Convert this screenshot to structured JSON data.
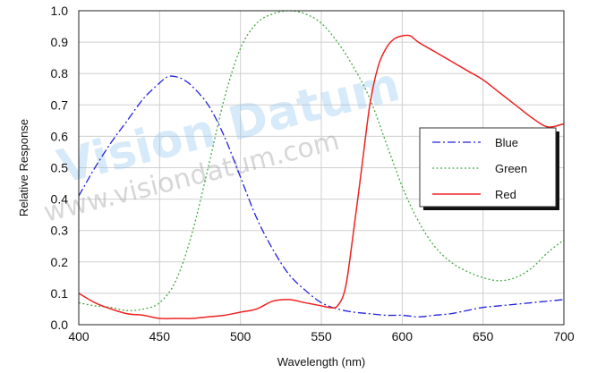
{
  "watermark": {
    "brand": "Vision Datum",
    "url": "www.visiondatum.com"
  },
  "chart_data": {
    "type": "line",
    "xlabel": "Wavelength (nm)",
    "ylabel": "Relative Response",
    "xlim": [
      400,
      700
    ],
    "ylim": [
      0.0,
      1.0
    ],
    "xticks": [
      "400",
      "450",
      "500",
      "550",
      "600",
      "650",
      "700"
    ],
    "yticks": [
      "0.0",
      "0.1",
      "0.2",
      "0.3",
      "0.4",
      "0.5",
      "0.6",
      "0.7",
      "0.8",
      "0.9",
      "1.0"
    ],
    "grid": true,
    "legend_position": "right",
    "series": [
      {
        "name": "Blue",
        "color": "#2222dd",
        "dash": "dash-dot",
        "x": [
          400,
          410,
          420,
          430,
          440,
          450,
          455,
          460,
          465,
          470,
          480,
          490,
          500,
          510,
          520,
          530,
          540,
          550,
          560,
          570,
          580,
          590,
          600,
          610,
          620,
          630,
          640,
          650,
          660,
          670,
          680,
          690,
          700
        ],
        "y": [
          0.41,
          0.5,
          0.58,
          0.65,
          0.72,
          0.77,
          0.79,
          0.79,
          0.78,
          0.76,
          0.7,
          0.6,
          0.47,
          0.34,
          0.24,
          0.16,
          0.11,
          0.07,
          0.05,
          0.04,
          0.035,
          0.03,
          0.03,
          0.025,
          0.03,
          0.035,
          0.045,
          0.055,
          0.06,
          0.065,
          0.07,
          0.075,
          0.08
        ]
      },
      {
        "name": "Green",
        "color": "#44aa44",
        "dash": "dotted",
        "x": [
          400,
          410,
          420,
          430,
          440,
          450,
          460,
          470,
          480,
          490,
          500,
          510,
          520,
          530,
          540,
          550,
          560,
          570,
          580,
          590,
          600,
          610,
          620,
          630,
          640,
          650,
          660,
          670,
          680,
          690,
          700
        ],
        "y": [
          0.07,
          0.06,
          0.055,
          0.045,
          0.05,
          0.07,
          0.14,
          0.29,
          0.5,
          0.72,
          0.88,
          0.96,
          0.99,
          1.0,
          0.99,
          0.96,
          0.9,
          0.82,
          0.72,
          0.58,
          0.44,
          0.33,
          0.25,
          0.2,
          0.17,
          0.15,
          0.14,
          0.15,
          0.18,
          0.23,
          0.27
        ]
      },
      {
        "name": "Red",
        "color": "#ee2222",
        "dash": "solid",
        "x": [
          400,
          410,
          420,
          430,
          440,
          450,
          460,
          470,
          480,
          490,
          500,
          510,
          520,
          530,
          540,
          550,
          555,
          560,
          565,
          570,
          575,
          580,
          585,
          590,
          595,
          600,
          605,
          610,
          620,
          630,
          640,
          650,
          660,
          670,
          680,
          690,
          700
        ],
        "y": [
          0.1,
          0.07,
          0.05,
          0.035,
          0.03,
          0.02,
          0.02,
          0.02,
          0.025,
          0.03,
          0.04,
          0.05,
          0.075,
          0.08,
          0.07,
          0.06,
          0.055,
          0.06,
          0.12,
          0.3,
          0.5,
          0.7,
          0.82,
          0.88,
          0.91,
          0.92,
          0.92,
          0.9,
          0.87,
          0.84,
          0.81,
          0.78,
          0.74,
          0.7,
          0.66,
          0.63,
          0.64
        ]
      }
    ]
  }
}
